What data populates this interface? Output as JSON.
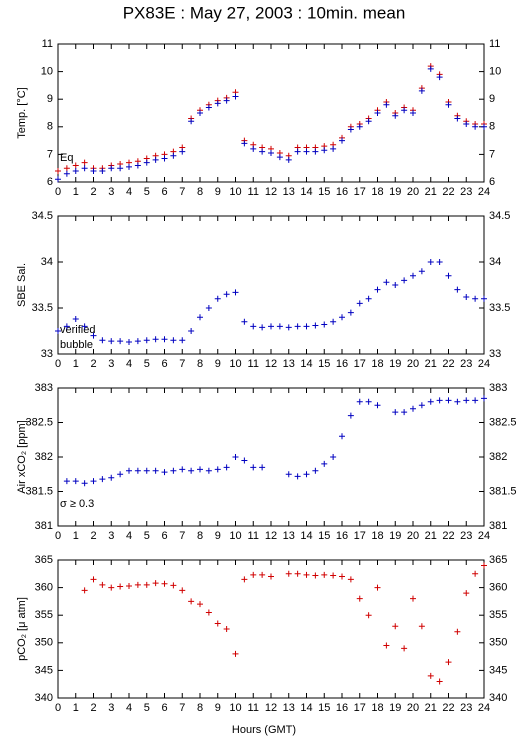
{
  "chart_data": [
    {
      "type": "scatter",
      "title": "PX83E : May 27, 2003 : 10min. mean",
      "ylabel": "Temp. [°C]",
      "x": [
        0,
        0.5,
        1,
        1.5,
        2,
        2.5,
        3,
        3.5,
        4,
        4.5,
        5,
        5.5,
        6,
        6.5,
        7,
        7.5,
        8,
        8.5,
        9,
        9.5,
        10,
        10.5,
        11,
        11.5,
        12,
        12.5,
        13,
        13.5,
        14,
        14.5,
        15,
        15.5,
        16,
        16.5,
        17,
        17.5,
        18,
        18.5,
        19,
        19.5,
        20,
        20.5,
        21,
        21.5,
        22,
        22.5,
        23,
        23.5,
        24
      ],
      "series": [
        {
          "name": "Eq",
          "color": "#d00000",
          "values": [
            6.4,
            6.5,
            6.6,
            6.7,
            6.5,
            6.5,
            6.6,
            6.65,
            6.7,
            6.75,
            6.85,
            6.95,
            7.0,
            7.1,
            7.25,
            8.3,
            8.6,
            8.8,
            8.95,
            9.05,
            9.25,
            7.5,
            7.35,
            7.25,
            7.2,
            7.05,
            6.95,
            7.25,
            7.25,
            7.25,
            7.3,
            7.35,
            7.6,
            8.0,
            8.1,
            8.3,
            8.6,
            8.9,
            8.5,
            8.7,
            8.6,
            9.4,
            10.2,
            9.9,
            8.9,
            8.4,
            8.2,
            8.1,
            8.1
          ]
        },
        {
          "name": null,
          "color": "#0000c0",
          "values": [
            6.1,
            6.3,
            6.4,
            6.5,
            6.4,
            6.4,
            6.5,
            6.5,
            6.55,
            6.6,
            6.7,
            6.8,
            6.85,
            6.95,
            7.1,
            8.2,
            8.5,
            8.7,
            8.85,
            8.95,
            9.1,
            7.4,
            7.2,
            7.1,
            7.05,
            6.9,
            6.8,
            7.1,
            7.1,
            7.1,
            7.15,
            7.2,
            7.5,
            7.9,
            8.0,
            8.2,
            8.5,
            8.8,
            8.4,
            8.6,
            8.5,
            9.3,
            10.1,
            9.8,
            8.8,
            8.3,
            8.1,
            8.0,
            8.0
          ]
        }
      ],
      "xlim": [
        0,
        24
      ],
      "xticks": [
        0,
        1,
        2,
        3,
        4,
        5,
        6,
        7,
        8,
        9,
        10,
        11,
        12,
        13,
        14,
        15,
        16,
        17,
        18,
        19,
        20,
        21,
        22,
        23,
        24
      ],
      "ylim": [
        6,
        11
      ],
      "yticks": [
        6,
        7,
        8,
        9,
        10,
        11
      ]
    },
    {
      "type": "scatter",
      "ylabel": "SBE Sal.",
      "annotations": [
        {
          "text": "verified",
          "color": "#0000c0"
        },
        {
          "text": "bubble",
          "color": "#c000c0"
        }
      ],
      "x": [
        0,
        0.5,
        1,
        1.5,
        2,
        2.5,
        3,
        3.5,
        4,
        4.5,
        5,
        5.5,
        6,
        6.5,
        7,
        7.5,
        8,
        8.5,
        9,
        9.5,
        10,
        10.5,
        11,
        11.5,
        12,
        12.5,
        13,
        13.5,
        14,
        14.5,
        15,
        15.5,
        16,
        16.5,
        17,
        17.5,
        18,
        18.5,
        19,
        19.5,
        20,
        20.5,
        21,
        21.5,
        22,
        22.5,
        23,
        23.5,
        24
      ],
      "series": [
        {
          "name": null,
          "color": "#0000c0",
          "values": [
            33.25,
            33.3,
            33.38,
            33.3,
            33.2,
            33.15,
            33.14,
            33.14,
            33.13,
            33.14,
            33.15,
            33.16,
            33.16,
            33.15,
            33.15,
            33.25,
            33.4,
            33.5,
            33.6,
            33.65,
            33.67,
            33.35,
            33.3,
            33.29,
            33.3,
            33.3,
            33.29,
            33.3,
            33.3,
            33.31,
            33.32,
            33.35,
            33.4,
            33.45,
            33.55,
            33.6,
            33.7,
            33.78,
            33.75,
            33.8,
            33.85,
            33.9,
            34.0,
            34.0,
            33.85,
            33.7,
            33.62,
            33.6,
            33.6
          ]
        }
      ],
      "xlim": [
        0,
        24
      ],
      "xticks": [
        0,
        1,
        2,
        3,
        4,
        5,
        6,
        7,
        8,
        9,
        10,
        11,
        12,
        13,
        14,
        15,
        16,
        17,
        18,
        19,
        20,
        21,
        22,
        23,
        24
      ],
      "ylim": [
        33,
        34.5
      ],
      "yticks": [
        33,
        33.5,
        34,
        34.5
      ]
    },
    {
      "type": "scatter",
      "ylabel": "Air xCO₂ [ppm]",
      "annotations": [
        {
          "text": "σ ≥ 0.3",
          "color": "#c000c0"
        }
      ],
      "x": [
        0,
        0.5,
        1,
        1.5,
        2,
        2.5,
        3,
        3.5,
        4,
        4.5,
        5,
        5.5,
        6,
        6.5,
        7,
        7.5,
        8,
        8.5,
        9,
        9.5,
        10,
        10.5,
        11,
        11.5,
        12,
        12.5,
        13,
        13.5,
        14,
        14.5,
        15,
        15.5,
        16,
        16.5,
        17,
        17.5,
        18,
        18.5,
        19,
        19.5,
        20,
        20.5,
        21,
        21.5,
        22,
        22.5,
        23,
        23.5,
        24
      ],
      "series": [
        {
          "name": null,
          "color": "#0000c0",
          "values": [
            null,
            381.65,
            381.65,
            381.62,
            381.65,
            381.68,
            381.7,
            381.75,
            381.8,
            381.8,
            381.8,
            381.8,
            381.78,
            381.8,
            381.82,
            381.8,
            381.82,
            381.8,
            381.82,
            381.85,
            382.0,
            381.95,
            381.85,
            381.85,
            null,
            null,
            381.75,
            381.72,
            381.75,
            381.8,
            381.9,
            382.0,
            382.3,
            382.6,
            382.8,
            382.8,
            382.75,
            null,
            382.65,
            382.65,
            382.7,
            382.75,
            382.8,
            382.82,
            382.82,
            382.8,
            382.82,
            382.82,
            382.85
          ]
        }
      ],
      "xlim": [
        0,
        24
      ],
      "xticks": [
        0,
        1,
        2,
        3,
        4,
        5,
        6,
        7,
        8,
        9,
        10,
        11,
        12,
        13,
        14,
        15,
        16,
        17,
        18,
        19,
        20,
        21,
        22,
        23,
        24
      ],
      "ylim": [
        381,
        383
      ],
      "yticks": [
        381,
        381.5,
        382,
        382.5,
        383
      ]
    },
    {
      "type": "scatter",
      "ylabel": "pCO₂ [μ atm]",
      "xlabel": "Hours (GMT)",
      "x": [
        0,
        0.5,
        1,
        1.5,
        2,
        2.5,
        3,
        3.5,
        4,
        4.5,
        5,
        5.5,
        6,
        6.5,
        7,
        7.5,
        8,
        8.5,
        9,
        9.5,
        10,
        10.5,
        11,
        11.5,
        12,
        12.5,
        13,
        13.5,
        14,
        14.5,
        15,
        15.5,
        16,
        16.5,
        17,
        17.5,
        18,
        18.5,
        19,
        19.5,
        20,
        20.5,
        21,
        21.5,
        22,
        22.5,
        23,
        23.5,
        24
      ],
      "series": [
        {
          "name": null,
          "color": "#d00000",
          "values": [
            null,
            null,
            null,
            359.5,
            361.5,
            360.5,
            360,
            360.2,
            360.3,
            360.5,
            360.5,
            360.8,
            360.7,
            360.4,
            359.5,
            357.5,
            357,
            355.5,
            353.5,
            352.5,
            348,
            361.5,
            362.3,
            362.3,
            362,
            null,
            362.5,
            362.5,
            362.3,
            362.2,
            362.3,
            362.2,
            362,
            361.5,
            358,
            355,
            360,
            349.5,
            353,
            349,
            358,
            353,
            344,
            343,
            346.5,
            352,
            359,
            362.5,
            364
          ]
        }
      ],
      "xlim": [
        0,
        24
      ],
      "xticks": [
        0,
        1,
        2,
        3,
        4,
        5,
        6,
        7,
        8,
        9,
        10,
        11,
        12,
        13,
        14,
        15,
        16,
        17,
        18,
        19,
        20,
        21,
        22,
        23,
        24
      ],
      "ylim": [
        340,
        365
      ],
      "yticks": [
        340,
        345,
        350,
        355,
        360,
        365
      ]
    }
  ]
}
